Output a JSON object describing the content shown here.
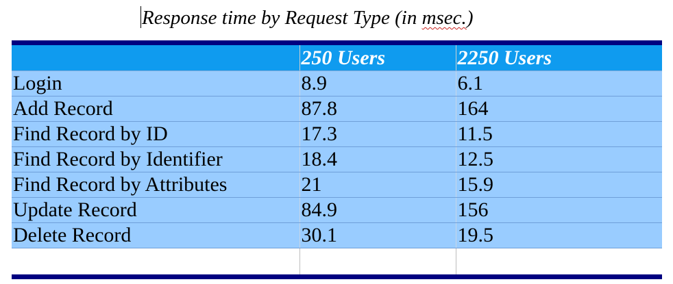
{
  "caption": {
    "before": "Response time by Request Type (in ",
    "squiggle": "msec.",
    "after": ")"
  },
  "table": {
    "headers": [
      "",
      "250 Users",
      "2250 Users"
    ],
    "rows": [
      [
        "Login",
        "8.9",
        "6.1"
      ],
      [
        "Add Record",
        "87.8",
        "164"
      ],
      [
        "Find Record by ID",
        "17.3",
        "11.5"
      ],
      [
        "Find Record by Identifier",
        "18.4",
        "12.5"
      ],
      [
        "Find Record by Attributes",
        "21",
        "15.9"
      ],
      [
        "Update Record",
        "84.9",
        "156"
      ],
      [
        "Delete Record",
        "30.1",
        "19.5"
      ]
    ]
  },
  "colors": {
    "rule": "#000080",
    "header_bg": "#0f9bef",
    "row_bg": "#99ccff",
    "spellcheck": "#c9211e"
  }
}
